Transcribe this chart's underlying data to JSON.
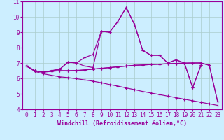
{
  "xlabel": "Windchill (Refroidissement éolien,°C)",
  "background_color": "#cceeff",
  "line_color": "#990099",
  "grid_color": "#aacccc",
  "x_values": [
    0,
    1,
    2,
    3,
    4,
    5,
    6,
    7,
    8,
    9,
    10,
    11,
    12,
    13,
    14,
    15,
    16,
    17,
    18,
    19,
    20,
    21,
    22,
    23
  ],
  "series_peak": [
    6.8,
    6.5,
    6.4,
    6.5,
    6.6,
    7.05,
    7.0,
    7.35,
    7.55,
    9.05,
    9.0,
    9.7,
    10.6,
    9.5,
    7.8,
    7.5,
    7.5,
    7.0,
    7.2,
    7.0,
    5.4,
    6.85,
    null,
    null
  ],
  "series_peak2": [
    6.8,
    6.5,
    6.4,
    6.5,
    6.6,
    7.05,
    7.0,
    6.8,
    6.7,
    9.05,
    9.0,
    9.7,
    10.6,
    9.5,
    7.8,
    7.5,
    7.5,
    7.0,
    7.2,
    7.0,
    5.4,
    6.85,
    null,
    null
  ],
  "series_flat": [
    6.8,
    6.5,
    6.4,
    6.45,
    6.5,
    6.5,
    6.52,
    6.55,
    6.6,
    6.65,
    6.7,
    6.75,
    6.8,
    6.85,
    6.87,
    6.9,
    6.92,
    6.95,
    6.97,
    6.99,
    7.0,
    7.0,
    6.85,
    4.5
  ],
  "series_flat2": [
    6.8,
    6.5,
    6.4,
    6.5,
    6.5,
    6.5,
    6.5,
    6.55,
    6.6,
    6.65,
    6.7,
    6.75,
    6.8,
    6.85,
    6.87,
    6.9,
    6.92,
    6.95,
    6.97,
    6.99,
    7.0,
    7.0,
    6.85,
    4.5
  ],
  "series_descend": [
    6.8,
    6.45,
    6.3,
    6.2,
    6.1,
    6.05,
    5.98,
    5.9,
    5.82,
    5.72,
    5.6,
    5.5,
    5.38,
    5.27,
    5.15,
    5.05,
    4.95,
    4.85,
    4.75,
    4.65,
    4.55,
    4.45,
    4.35,
    4.25
  ],
  "ylim": [
    4,
    11
  ],
  "xlim": [
    -0.5,
    23.5
  ],
  "yticks": [
    4,
    5,
    6,
    7,
    8,
    9,
    10,
    11
  ],
  "xticks": [
    0,
    1,
    2,
    3,
    4,
    5,
    6,
    7,
    8,
    9,
    10,
    11,
    12,
    13,
    14,
    15,
    16,
    17,
    18,
    19,
    20,
    21,
    22,
    23
  ],
  "tick_fontsize": 5.5,
  "label_fontsize": 6.0
}
